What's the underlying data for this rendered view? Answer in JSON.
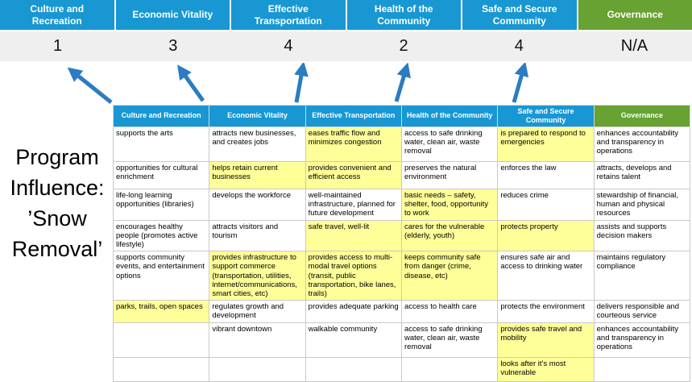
{
  "title": {
    "text": "Program\nInfluence:\n’Snow\nRemoval’"
  },
  "scoreboard": {
    "columns": [
      {
        "label": "Culture and Recreation",
        "score": "1"
      },
      {
        "label": "Economic Vitality",
        "score": "3"
      },
      {
        "label": "Effective Transportation",
        "score": "4"
      },
      {
        "label": "Health of the Community",
        "score": "2"
      },
      {
        "label": "Safe and Secure Community",
        "score": "4"
      },
      {
        "label": "Governance",
        "score": "N/A"
      }
    ]
  },
  "colors": {
    "header_blue": "#1897d3",
    "header_green": "#67a232",
    "highlight_yellow": "#ffff99",
    "arrow_blue": "#2b7cc1",
    "score_band_gray": "#efefef"
  },
  "table": {
    "headers": [
      "Culture and Recreation",
      "Economic Vitality",
      "Effective Transportation",
      "Health of the Community",
      "Safe and Secure Community",
      "Governance"
    ],
    "rows": [
      [
        {
          "text": "supports the arts",
          "highlight": false
        },
        {
          "text": "attracts new businesses, and creates jobs",
          "highlight": false
        },
        {
          "text": "eases traffic flow and minimizes congestion",
          "highlight": true
        },
        {
          "text": "access to safe drinking water, clean air, waste removal",
          "highlight": false
        },
        {
          "text": "is prepared to respond to emergencies",
          "highlight": true
        },
        {
          "text": "enhances accountability and transparency in operations",
          "highlight": false
        }
      ],
      [
        {
          "text": "opportunities for cultural enrichment",
          "highlight": false
        },
        {
          "text": "helps retain current businesses",
          "highlight": true
        },
        {
          "text": "provides convenient and efficient access",
          "highlight": true
        },
        {
          "text": "preserves the natural environment",
          "highlight": false
        },
        {
          "text": "enforces the law",
          "highlight": false
        },
        {
          "text": "attracts, develops and retains talent",
          "highlight": false
        }
      ],
      [
        {
          "text": "life-long learning opportunities (libraries)",
          "highlight": false
        },
        {
          "text": "develops the workforce",
          "highlight": false
        },
        {
          "text": "well-maintained infrastructure, planned for future development",
          "highlight": false
        },
        {
          "text": "basic needs – safety, shelter, food, opportunity to work",
          "highlight": true
        },
        {
          "text": "reduces crime",
          "highlight": false
        },
        {
          "text": "stewardship of financial, human and physical resources",
          "highlight": false
        }
      ],
      [
        {
          "text": "encourages healthy people (promotes active lifestyle)",
          "highlight": false
        },
        {
          "text": "attracts visitors and tourism",
          "highlight": false
        },
        {
          "text": "safe travel, well-lit",
          "highlight": true
        },
        {
          "text": "cares for the vulnerable (elderly, youth)",
          "highlight": true
        },
        {
          "text": "protects property",
          "highlight": true
        },
        {
          "text": "assists and supports decision makers",
          "highlight": false
        }
      ],
      [
        {
          "text": "supports community events, and entertainment options",
          "highlight": false
        },
        {
          "text": "provides infrastructure to support commerce (transportation, utilities, internet/communications, smart cities, etc)",
          "highlight": true
        },
        {
          "text": "provides access to multi-modal travel options (transit, public transportation, bike lanes, trails)",
          "highlight": true
        },
        {
          "text": "keeps community safe from danger (crime, disease, etc)",
          "highlight": true
        },
        {
          "text": "ensures safe air and access to drinking water",
          "highlight": false
        },
        {
          "text": "maintains regulatory compliance",
          "highlight": false
        }
      ],
      [
        {
          "text": "parks, trails, open spaces",
          "highlight": true
        },
        {
          "text": "regulates growth and development",
          "highlight": false
        },
        {
          "text": "provides adequate parking",
          "highlight": false
        },
        {
          "text": "access to health care",
          "highlight": false
        },
        {
          "text": "protects the environment",
          "highlight": false
        },
        {
          "text": "delivers responsible and courteous service",
          "highlight": false
        }
      ],
      [
        {
          "text": "",
          "highlight": false
        },
        {
          "text": "vibrant downtown",
          "highlight": false
        },
        {
          "text": "walkable community",
          "highlight": false
        },
        {
          "text": "access to safe drinking water, clean air, waste removal",
          "highlight": false
        },
        {
          "text": "provides safe travel and mobility",
          "highlight": true
        },
        {
          "text": "enhances accountability and transparency in operations",
          "highlight": false
        }
      ],
      [
        {
          "text": "",
          "highlight": false
        },
        {
          "text": "",
          "highlight": false
        },
        {
          "text": "",
          "highlight": false
        },
        {
          "text": "",
          "highlight": false
        },
        {
          "text": "looks after it's most vulnerable",
          "highlight": true
        },
        {
          "text": "",
          "highlight": false
        }
      ]
    ]
  }
}
